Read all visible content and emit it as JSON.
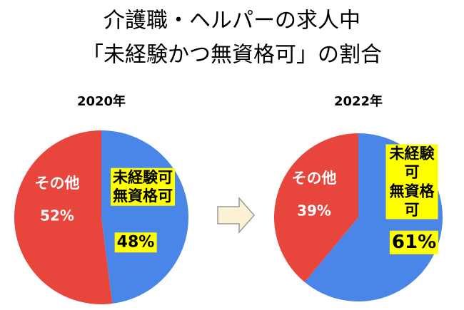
{
  "title": [
    "介護職・ヘルパーの求人中",
    "「未経験かつ無資格可」の割合"
  ],
  "chart_data": [
    {
      "type": "pie",
      "title": "2020年",
      "categories": [
        "未経験可\n無資格可",
        "その他"
      ],
      "values": [
        48,
        52
      ],
      "value_labels": [
        "48%",
        "52%"
      ],
      "colors": [
        "#4a86e8",
        "#e8453c"
      ]
    },
    {
      "type": "pie",
      "title": "2022年",
      "categories": [
        "未経験可\n無資格可",
        "その他"
      ],
      "values": [
        61,
        39
      ],
      "value_labels": [
        "61%",
        "39%"
      ],
      "colors": [
        "#4a86e8",
        "#e8453c"
      ]
    }
  ]
}
